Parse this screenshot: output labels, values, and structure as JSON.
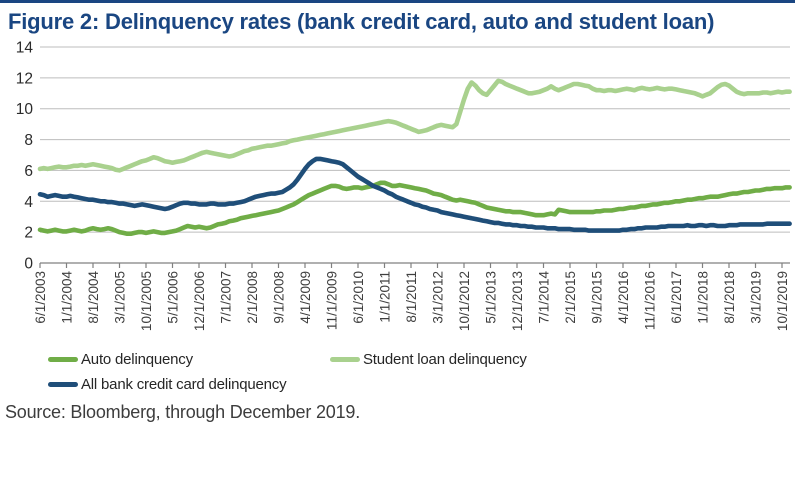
{
  "title": "Figure 2: Delinquency rates (bank credit card, auto and student loan)",
  "source": "Source: Bloomberg, through December 2019.",
  "colors": {
    "title_text": "#1a4682",
    "top_rule": "#1a4682",
    "gridline": "#bdbdbd",
    "axis_line": "#808080",
    "axis_tick_text": "#3f3f3f",
    "y_tick_text": "#2b2b2b"
  },
  "chart_data": {
    "type": "line",
    "title": "Figure 2: Delinquency rates (bank credit card, auto and student loan)",
    "xlabel": "",
    "ylabel": "",
    "ylim": [
      0,
      14
    ],
    "y_ticks": [
      0,
      2,
      4,
      6,
      8,
      10,
      12,
      14
    ],
    "grid": "horizontal",
    "legend_position": "bottom",
    "x_unit": "monthly",
    "x_start": "6/1/2003",
    "x_end": "12/1/2019",
    "x_tick_every_n_months": 7,
    "x_tick_labels": [
      "6/1/2003",
      "1/1/2004",
      "8/1/2004",
      "3/1/2005",
      "10/1/2005",
      "5/1/2006",
      "12/1/2006",
      "7/1/2007",
      "2/1/2008",
      "9/1/2008",
      "4/1/2009",
      "11/1/2009",
      "6/1/2010",
      "1/1/2011",
      "8/1/2011",
      "3/1/2012",
      "10/1/2012",
      "5/1/2013",
      "12/1/2013",
      "7/1/2014",
      "2/1/2015",
      "9/1/2015",
      "4/1/2016",
      "11/1/2016",
      "6/1/2017",
      "1/1/2018",
      "8/1/2018",
      "3/1/2019",
      "10/1/2019"
    ],
    "series": [
      {
        "name": "Auto delinquency",
        "color": "#70ad47",
        "values": [
          2.15,
          2.1,
          2.05,
          2.1,
          2.15,
          2.1,
          2.05,
          2.05,
          2.1,
          2.15,
          2.1,
          2.05,
          2.1,
          2.2,
          2.25,
          2.2,
          2.15,
          2.2,
          2.25,
          2.2,
          2.1,
          2.0,
          1.95,
          1.9,
          1.9,
          1.95,
          2.0,
          2.0,
          1.95,
          2.0,
          2.05,
          2.0,
          1.95,
          1.95,
          2.0,
          2.05,
          2.1,
          2.2,
          2.3,
          2.4,
          2.35,
          2.3,
          2.35,
          2.3,
          2.25,
          2.3,
          2.4,
          2.5,
          2.55,
          2.6,
          2.7,
          2.75,
          2.8,
          2.9,
          2.95,
          3.0,
          3.05,
          3.1,
          3.15,
          3.2,
          3.25,
          3.3,
          3.35,
          3.4,
          3.5,
          3.6,
          3.7,
          3.8,
          3.95,
          4.1,
          4.25,
          4.4,
          4.5,
          4.6,
          4.7,
          4.8,
          4.9,
          5.0,
          5.0,
          4.95,
          4.85,
          4.8,
          4.85,
          4.9,
          4.9,
          4.85,
          4.9,
          4.95,
          5.0,
          5.1,
          5.2,
          5.2,
          5.1,
          5.0,
          5.0,
          5.05,
          5.0,
          4.95,
          4.9,
          4.85,
          4.8,
          4.75,
          4.7,
          4.6,
          4.5,
          4.45,
          4.4,
          4.3,
          4.2,
          4.1,
          4.05,
          4.1,
          4.05,
          4.0,
          3.95,
          3.9,
          3.8,
          3.7,
          3.6,
          3.55,
          3.5,
          3.45,
          3.4,
          3.35,
          3.35,
          3.3,
          3.3,
          3.3,
          3.25,
          3.2,
          3.15,
          3.1,
          3.1,
          3.1,
          3.15,
          3.2,
          3.15,
          3.45,
          3.4,
          3.35,
          3.3,
          3.3,
          3.3,
          3.3,
          3.3,
          3.3,
          3.3,
          3.35,
          3.35,
          3.4,
          3.4,
          3.4,
          3.45,
          3.5,
          3.5,
          3.55,
          3.6,
          3.6,
          3.65,
          3.7,
          3.7,
          3.75,
          3.8,
          3.8,
          3.85,
          3.9,
          3.9,
          3.95,
          4.0,
          4.0,
          4.05,
          4.1,
          4.1,
          4.15,
          4.2,
          4.2,
          4.25,
          4.3,
          4.3,
          4.3,
          4.35,
          4.4,
          4.45,
          4.5,
          4.5,
          4.55,
          4.6,
          4.6,
          4.65,
          4.7,
          4.7,
          4.75,
          4.8,
          4.8,
          4.85,
          4.85,
          4.85,
          4.9,
          4.9
        ]
      },
      {
        "name": "Student loan delinquency",
        "color": "#a9d18e",
        "values": [
          6.1,
          6.15,
          6.1,
          6.15,
          6.2,
          6.25,
          6.2,
          6.2,
          6.25,
          6.3,
          6.3,
          6.35,
          6.3,
          6.35,
          6.4,
          6.35,
          6.3,
          6.25,
          6.2,
          6.15,
          6.05,
          6.0,
          6.1,
          6.2,
          6.3,
          6.4,
          6.5,
          6.6,
          6.65,
          6.75,
          6.85,
          6.8,
          6.7,
          6.6,
          6.55,
          6.5,
          6.55,
          6.6,
          6.65,
          6.75,
          6.85,
          6.95,
          7.05,
          7.15,
          7.2,
          7.15,
          7.1,
          7.05,
          7.0,
          6.95,
          6.9,
          6.95,
          7.05,
          7.15,
          7.25,
          7.3,
          7.4,
          7.45,
          7.5,
          7.55,
          7.6,
          7.6,
          7.65,
          7.7,
          7.75,
          7.8,
          7.9,
          7.95,
          8.0,
          8.05,
          8.1,
          8.15,
          8.2,
          8.25,
          8.3,
          8.35,
          8.4,
          8.45,
          8.5,
          8.55,
          8.6,
          8.65,
          8.7,
          8.75,
          8.8,
          8.85,
          8.9,
          8.95,
          9.0,
          9.05,
          9.1,
          9.15,
          9.2,
          9.15,
          9.1,
          9.0,
          8.9,
          8.8,
          8.7,
          8.6,
          8.5,
          8.55,
          8.6,
          8.7,
          8.8,
          8.9,
          8.95,
          8.9,
          8.85,
          8.8,
          9.0,
          9.8,
          10.6,
          11.3,
          11.7,
          11.5,
          11.2,
          11.0,
          10.9,
          11.2,
          11.5,
          11.8,
          11.75,
          11.6,
          11.5,
          11.4,
          11.3,
          11.2,
          11.1,
          11.0,
          11.0,
          11.05,
          11.1,
          11.2,
          11.3,
          11.45,
          11.3,
          11.2,
          11.3,
          11.4,
          11.5,
          11.6,
          11.6,
          11.55,
          11.5,
          11.45,
          11.3,
          11.2,
          11.2,
          11.15,
          11.2,
          11.2,
          11.15,
          11.2,
          11.25,
          11.3,
          11.25,
          11.2,
          11.3,
          11.35,
          11.3,
          11.25,
          11.3,
          11.35,
          11.3,
          11.25,
          11.3,
          11.3,
          11.25,
          11.2,
          11.15,
          11.1,
          11.05,
          11.0,
          10.9,
          10.8,
          10.9,
          11.0,
          11.2,
          11.4,
          11.55,
          11.6,
          11.5,
          11.3,
          11.1,
          11.0,
          10.95,
          11.0,
          11.0,
          11.0,
          11.0,
          11.05,
          11.05,
          11.0,
          11.05,
          11.1,
          11.05,
          11.1,
          11.1
        ]
      },
      {
        "name": "All bank credit card delinquency",
        "color": "#1f4e79",
        "values": [
          4.45,
          4.4,
          4.3,
          4.35,
          4.4,
          4.35,
          4.3,
          4.3,
          4.35,
          4.3,
          4.25,
          4.2,
          4.15,
          4.1,
          4.1,
          4.05,
          4.0,
          4.0,
          3.95,
          3.95,
          3.9,
          3.85,
          3.85,
          3.8,
          3.75,
          3.7,
          3.75,
          3.8,
          3.75,
          3.7,
          3.65,
          3.6,
          3.55,
          3.5,
          3.55,
          3.65,
          3.75,
          3.85,
          3.9,
          3.9,
          3.85,
          3.85,
          3.8,
          3.8,
          3.8,
          3.85,
          3.85,
          3.8,
          3.8,
          3.8,
          3.85,
          3.85,
          3.9,
          3.95,
          4.0,
          4.1,
          4.2,
          4.3,
          4.35,
          4.4,
          4.45,
          4.5,
          4.5,
          4.55,
          4.6,
          4.75,
          4.9,
          5.1,
          5.4,
          5.75,
          6.1,
          6.4,
          6.6,
          6.75,
          6.75,
          6.7,
          6.65,
          6.6,
          6.55,
          6.5,
          6.4,
          6.2,
          6.0,
          5.8,
          5.6,
          5.45,
          5.3,
          5.15,
          5.0,
          4.9,
          4.8,
          4.7,
          4.55,
          4.45,
          4.3,
          4.2,
          4.1,
          4.0,
          3.9,
          3.8,
          3.75,
          3.65,
          3.6,
          3.5,
          3.45,
          3.4,
          3.3,
          3.25,
          3.2,
          3.15,
          3.1,
          3.05,
          3.0,
          2.95,
          2.9,
          2.85,
          2.8,
          2.75,
          2.7,
          2.65,
          2.6,
          2.6,
          2.55,
          2.5,
          2.5,
          2.45,
          2.45,
          2.4,
          2.4,
          2.35,
          2.35,
          2.3,
          2.3,
          2.3,
          2.25,
          2.25,
          2.25,
          2.2,
          2.2,
          2.2,
          2.2,
          2.15,
          2.15,
          2.15,
          2.15,
          2.1,
          2.1,
          2.1,
          2.1,
          2.1,
          2.1,
          2.1,
          2.1,
          2.1,
          2.15,
          2.15,
          2.2,
          2.2,
          2.25,
          2.25,
          2.3,
          2.3,
          2.3,
          2.3,
          2.35,
          2.35,
          2.4,
          2.4,
          2.4,
          2.4,
          2.4,
          2.45,
          2.4,
          2.4,
          2.45,
          2.45,
          2.4,
          2.45,
          2.45,
          2.4,
          2.4,
          2.4,
          2.45,
          2.45,
          2.45,
          2.5,
          2.5,
          2.5,
          2.5,
          2.5,
          2.5,
          2.5,
          2.55,
          2.55,
          2.55,
          2.55,
          2.55,
          2.55,
          2.55
        ]
      }
    ]
  },
  "legend": {
    "row1_col1": "Auto delinquency",
    "row1_col2": "Student loan delinquency",
    "row2_col1": "All bank credit card delinquency"
  }
}
